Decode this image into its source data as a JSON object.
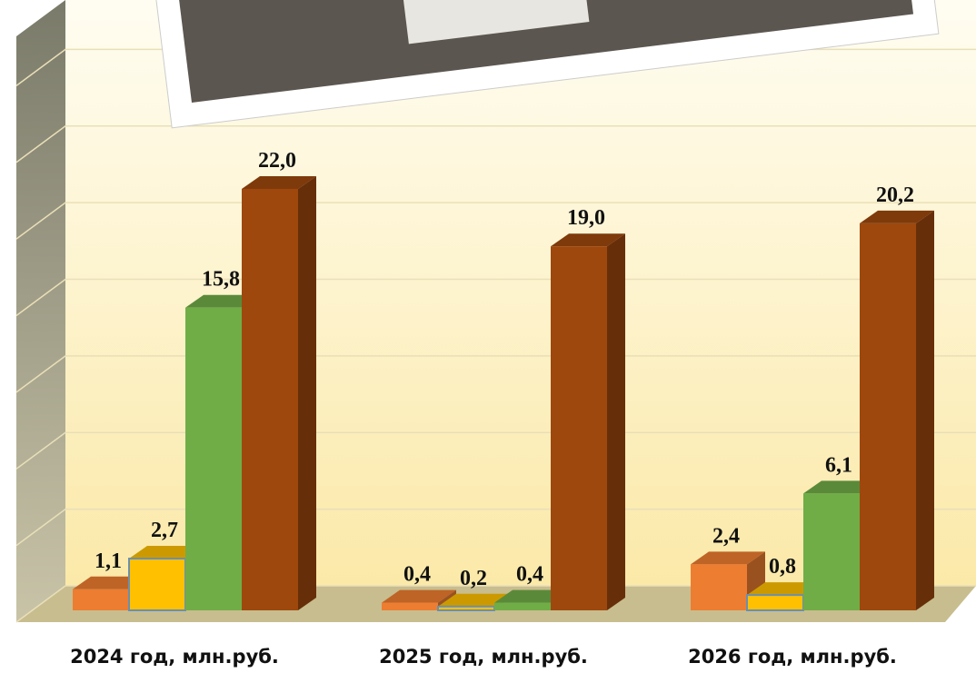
{
  "chart_data": {
    "type": "bar3d",
    "categories": [
      "2024 год, млн.руб.",
      "2025 год, млн.руб.",
      "2026 год, млн.руб."
    ],
    "series": [
      {
        "color": "#ED7D31",
        "values": [
          1.1,
          0.4,
          2.4
        ],
        "value_labels": [
          "1,1",
          "0,4",
          "2,4"
        ]
      },
      {
        "color": "#FFC000",
        "values": [
          2.7,
          0.2,
          0.8
        ],
        "value_labels": [
          "2,7",
          "0,2",
          "0,8"
        ]
      },
      {
        "color": "#70AD47",
        "values": [
          15.8,
          0.4,
          6.1
        ],
        "value_labels": [
          "15,8",
          "0,4",
          "6,1"
        ]
      },
      {
        "color": "#9E480E",
        "values": [
          22.0,
          19.0,
          20.2
        ],
        "value_labels": [
          "22,0",
          "19,0",
          "20,2"
        ]
      }
    ],
    "ylim": [
      0,
      32
    ],
    "yticks": [
      0,
      4,
      8,
      12,
      16,
      20,
      24,
      28,
      32
    ],
    "grid": true
  }
}
